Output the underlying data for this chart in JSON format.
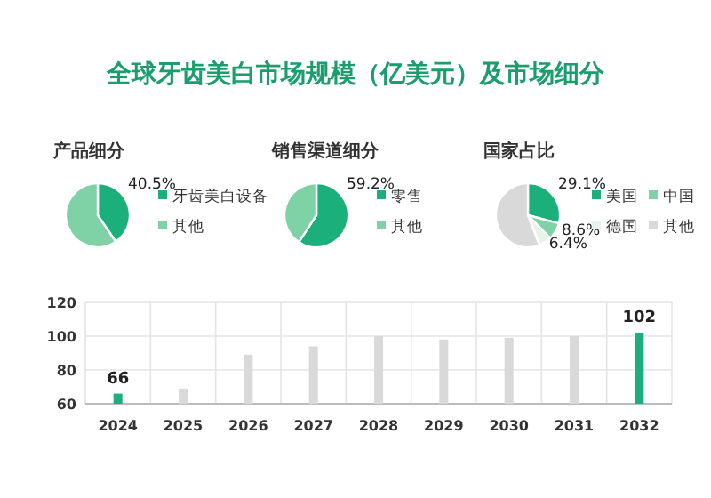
{
  "chart_data": [
    {
      "type": "pie",
      "title": "全球牙齿美白市场规模（亿美元）及市场细分",
      "subtitle": "产品细分",
      "categories": [
        "牙齿美白设备",
        "其他"
      ],
      "values": [
        40.5,
        59.5
      ],
      "colors": [
        "#1aaf7b",
        "#7fd1a6"
      ],
      "value_labels": [
        "40.5%",
        null
      ],
      "legend": "right"
    },
    {
      "type": "pie",
      "subtitle": "销售渠道细分",
      "categories": [
        "零售",
        "其他"
      ],
      "values": [
        59.2,
        40.8
      ],
      "colors": [
        "#1aaf7b",
        "#7fd1a6"
      ],
      "value_labels": [
        "59.2%",
        null
      ],
      "legend": "right"
    },
    {
      "type": "pie",
      "subtitle": "国家占比",
      "categories": [
        "美国",
        "中国",
        "德国",
        "其他"
      ],
      "values": [
        29.1,
        8.6,
        6.4,
        55.9
      ],
      "colors": [
        "#1aaf7b",
        "#7fd1a6",
        "#e6f4ec",
        "#d9d9d9"
      ],
      "value_labels": [
        "29.1%",
        "8.6%",
        "6.4%",
        null
      ],
      "legend": "right"
    },
    {
      "type": "bar",
      "categories": [
        "2024",
        "2025",
        "2026",
        "2027",
        "2028",
        "2029",
        "2030",
        "2031",
        "2032"
      ],
      "values": [
        66,
        69,
        89,
        94,
        100,
        98,
        99,
        100,
        102
      ],
      "colors": [
        "#1aaf7b",
        "#d9d9d9",
        "#d9d9d9",
        "#d9d9d9",
        "#d9d9d9",
        "#d9d9d9",
        "#d9d9d9",
        "#d9d9d9",
        "#1aaf7b"
      ],
      "value_labels": [
        "66",
        null,
        null,
        null,
        null,
        null,
        null,
        null,
        "102"
      ],
      "ylim": [
        60,
        120
      ],
      "yticks": [
        60,
        80,
        100,
        120
      ],
      "grid": true
    }
  ]
}
